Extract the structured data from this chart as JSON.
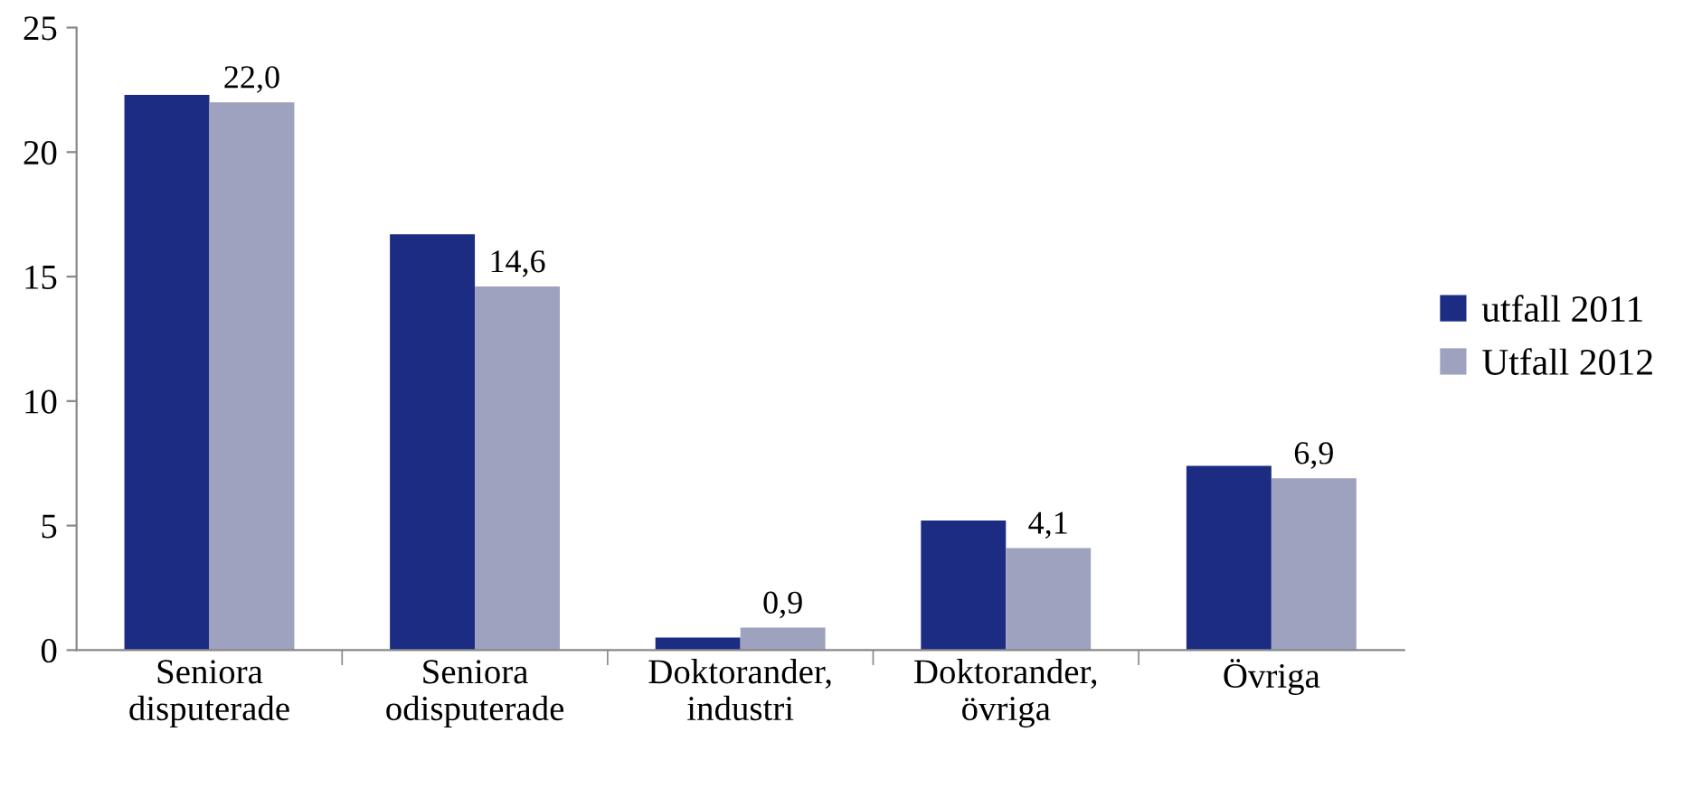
{
  "chart_data": {
    "type": "bar",
    "categories": [
      "Seniora\ndisputerade",
      "Seniora\nodisputerade",
      "Doktorander,\nindustri",
      "Doktorander,\növriga",
      "Övriga"
    ],
    "series": [
      {
        "name": "utfall 2011",
        "color": "#1c2c82",
        "values": [
          22.3,
          16.7,
          0.5,
          5.2,
          7.4
        ]
      },
      {
        "name": "Utfall 2012",
        "color": "#9ea2bf",
        "values": [
          22.0,
          14.6,
          0.9,
          4.1,
          6.9
        ],
        "value_labels": [
          "22,0",
          "14,6",
          "0,9",
          "4,1",
          "6,9"
        ]
      }
    ],
    "ylim": [
      0,
      25
    ],
    "yticks": [
      0,
      5,
      10,
      15,
      20,
      25
    ],
    "grid": false,
    "legend": "right"
  }
}
